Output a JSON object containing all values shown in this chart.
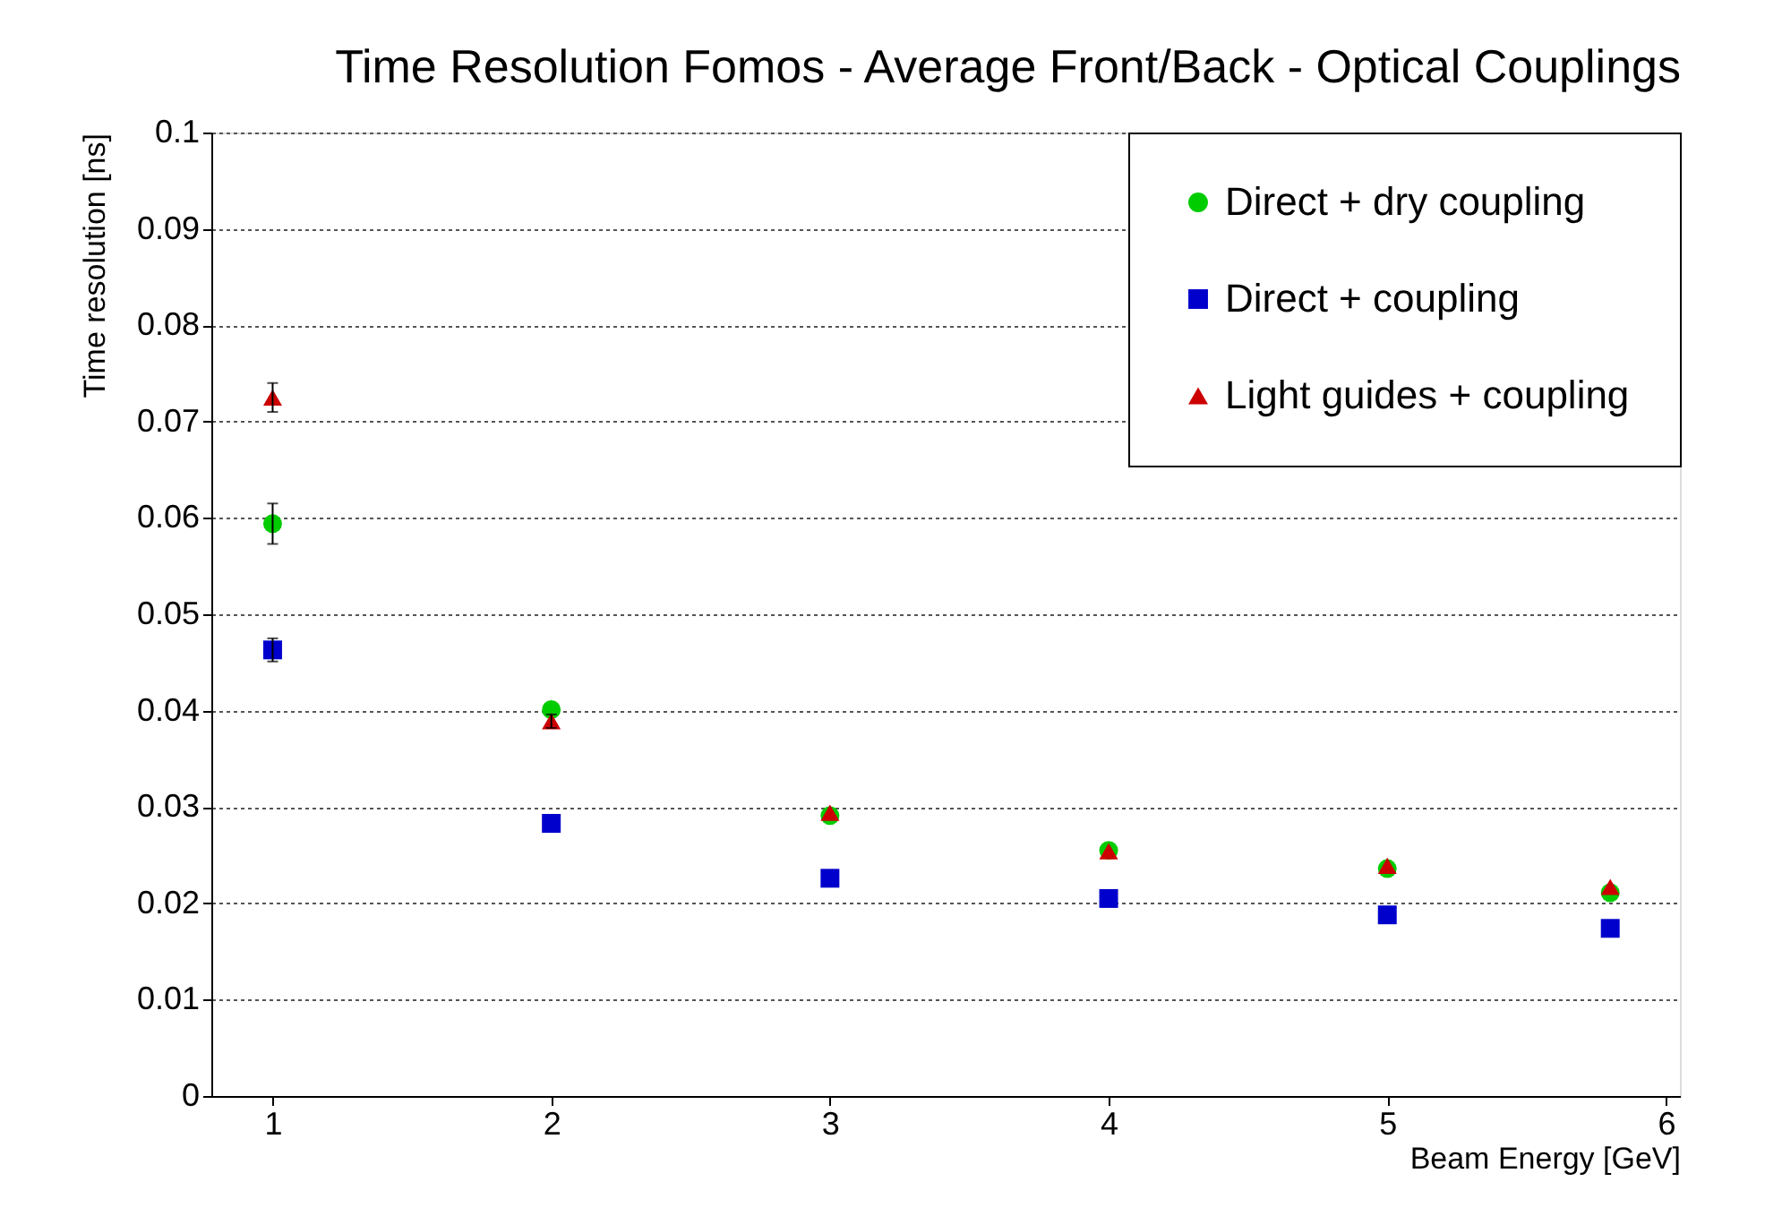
{
  "chart_data": {
    "type": "scatter",
    "title": "Time Resolution Fomos - Average Front/Back - Optical Couplings",
    "xlabel": "Beam Energy [GeV]",
    "ylabel": "Time resolution [ns]",
    "x": [
      1,
      2,
      3,
      4,
      5,
      5.8
    ],
    "series": [
      {
        "name": "Direct + dry coupling",
        "color": "#00cc00",
        "marker": "circle",
        "values": [
          0.0594,
          0.0401,
          0.0291,
          0.0255,
          0.0236,
          0.0211
        ],
        "errors": [
          0.0021,
          null,
          null,
          null,
          null,
          null
        ]
      },
      {
        "name": "Direct + coupling",
        "color": "#0000cc",
        "marker": "square",
        "values": [
          0.0463,
          0.0283,
          0.0226,
          0.0205,
          0.0188,
          0.0174
        ],
        "errors": [
          0.0012,
          null,
          null,
          null,
          null,
          null
        ]
      },
      {
        "name": "Light guides + coupling",
        "color": "#cc0000",
        "marker": "triangle",
        "values": [
          0.0725,
          0.0389,
          0.0294,
          0.0254,
          0.0239,
          0.0217
        ],
        "errors": [
          0.0015,
          0.0007,
          null,
          null,
          null,
          null
        ]
      }
    ],
    "xlim": [
      0.78,
      6.05
    ],
    "xticks": [
      1,
      2,
      3,
      4,
      5,
      6
    ],
    "ylim": [
      0,
      0.1
    ],
    "yticks": [
      0,
      0.01,
      0.02,
      0.03,
      0.04,
      0.05,
      0.06,
      0.07,
      0.08,
      0.09,
      0.1
    ],
    "grid": "y",
    "legend": "top right"
  }
}
